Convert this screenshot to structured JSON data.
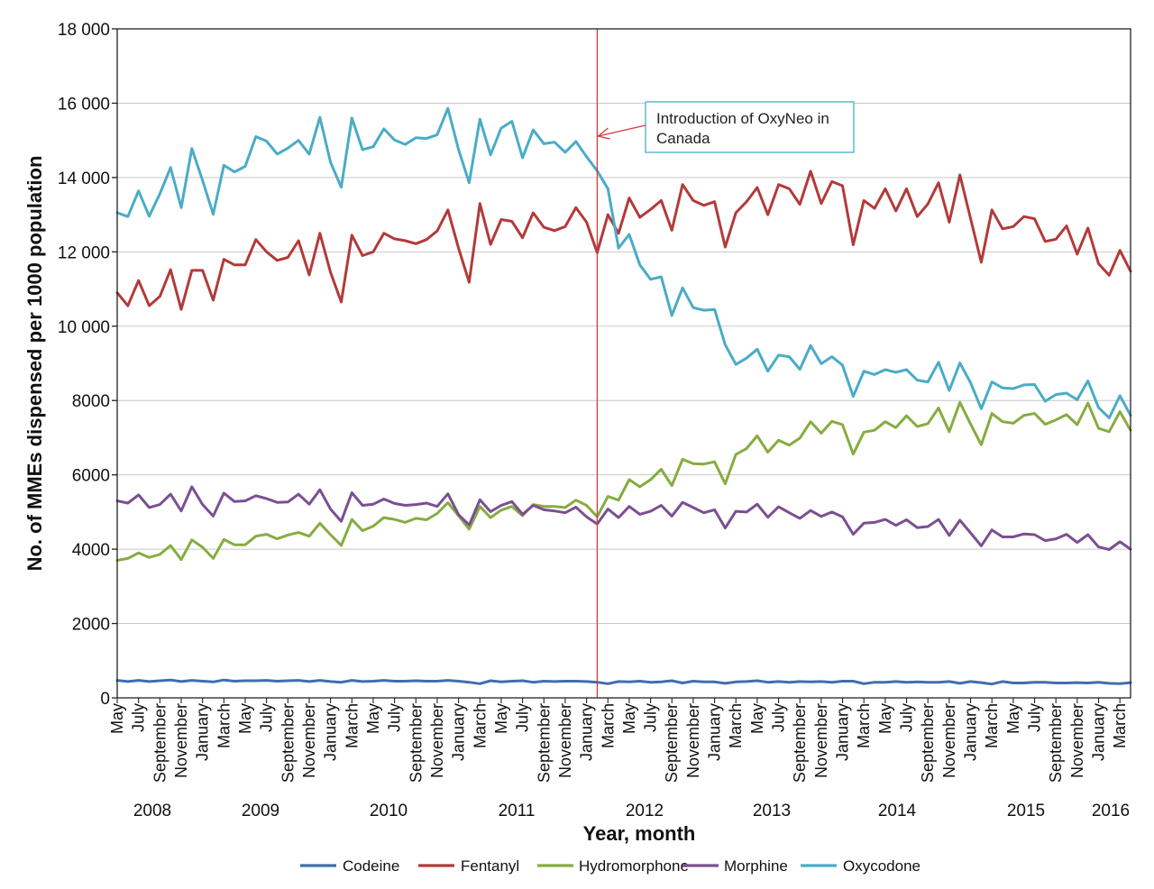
{
  "chart_data": {
    "type": "line",
    "xlabel": "Year, month",
    "ylabel": "No. of MMEs dispensed per 1000 population",
    "ylim": [
      0,
      18000
    ],
    "y_ticks": [
      "0",
      "2000",
      "4000",
      "6000",
      "8000",
      "10 000",
      "12 000",
      "14 000",
      "16 000",
      "18 000"
    ],
    "grid": "horizontal",
    "legend_position": "bottom",
    "x_month_labels": [
      "May",
      "July",
      "September",
      "November",
      "January",
      "March",
      "May",
      "July",
      "September",
      "November",
      "January",
      "March",
      "May",
      "July",
      "September",
      "November",
      "January",
      "March",
      "May",
      "July",
      "September",
      "November",
      "January",
      "March",
      "May",
      "July",
      "September",
      "November",
      "January",
      "March",
      "May",
      "July",
      "September",
      "November",
      "January",
      "March",
      "May",
      "July",
      "September",
      "November",
      "January",
      "March",
      "May",
      "July",
      "September",
      "November",
      "January",
      "March"
    ],
    "x_year_labels": [
      "2008",
      "2009",
      "2010",
      "2011",
      "2012",
      "2013",
      "2014",
      "2015",
      "2016"
    ],
    "period": "May 2008 - April 2016 (monthly)",
    "annotation": {
      "text_line1": "Introduction of OxyNeo in",
      "text_line2": "Canada",
      "date": "February 2012",
      "month_index": 45,
      "color": "#d23a3a"
    },
    "series": [
      {
        "name": "Codeine",
        "color": "#3f6fad",
        "values": [
          470,
          440,
          470,
          440,
          460,
          480,
          440,
          470,
          450,
          430,
          480,
          450,
          460,
          460,
          470,
          450,
          460,
          470,
          440,
          470,
          440,
          420,
          470,
          440,
          450,
          470,
          450,
          450,
          460,
          450,
          450,
          470,
          450,
          420,
          380,
          460,
          430,
          450,
          460,
          420,
          450,
          440,
          450,
          450,
          440,
          420,
          380,
          440,
          430,
          450,
          420,
          430,
          460,
          400,
          450,
          430,
          430,
          390,
          430,
          440,
          460,
          420,
          440,
          420,
          440,
          430,
          440,
          420,
          450,
          450,
          380,
          420,
          420,
          440,
          420,
          430,
          420,
          420,
          440,
          390,
          440,
          410,
          370,
          440,
          400,
          400,
          420,
          420,
          400,
          400,
          410,
          400,
          420,
          390,
          380,
          410
        ]
      },
      {
        "name": "Fentanyl",
        "color": "#b33a3a",
        "values": [
          10900,
          10550,
          11230,
          10550,
          10800,
          11520,
          10450,
          11500,
          11500,
          10700,
          11800,
          11650,
          11650,
          12330,
          12000,
          11770,
          11850,
          12300,
          11380,
          12500,
          11450,
          10650,
          12450,
          11900,
          12000,
          12500,
          12350,
          12300,
          12220,
          12330,
          12560,
          13130,
          12100,
          11180,
          13300,
          12200,
          12870,
          12820,
          12380,
          13050,
          12660,
          12570,
          12680,
          13190,
          12800,
          11980,
          13000,
          12500,
          13450,
          12930,
          13140,
          13380,
          12580,
          13810,
          13380,
          13250,
          13350,
          12130,
          13050,
          13350,
          13730,
          13000,
          13810,
          13700,
          13280,
          14170,
          13300,
          13890,
          13780,
          12190,
          13380,
          13170,
          13700,
          13100,
          13700,
          12950,
          13290,
          13860,
          12800,
          14070,
          12900,
          11720,
          13130,
          12620,
          12680,
          12950,
          12890,
          12280,
          12340,
          12700,
          11940,
          12640,
          11680,
          11370,
          12040,
          11480
        ]
      },
      {
        "name": "Hydromorphone",
        "color": "#86ac41",
        "values": [
          3700,
          3750,
          3900,
          3780,
          3860,
          4100,
          3720,
          4250,
          4050,
          3750,
          4260,
          4120,
          4120,
          4350,
          4400,
          4280,
          4380,
          4450,
          4350,
          4700,
          4390,
          4100,
          4800,
          4500,
          4620,
          4850,
          4800,
          4720,
          4830,
          4790,
          4960,
          5250,
          4900,
          4540,
          5150,
          4850,
          5050,
          5150,
          4900,
          5200,
          5150,
          5150,
          5120,
          5320,
          5180,
          4870,
          5420,
          5320,
          5870,
          5680,
          5870,
          6150,
          5710,
          6420,
          6300,
          6290,
          6350,
          5760,
          6550,
          6710,
          7050,
          6610,
          6930,
          6800,
          6990,
          7430,
          7120,
          7440,
          7350,
          6560,
          7150,
          7200,
          7430,
          7270,
          7590,
          7300,
          7380,
          7800,
          7160,
          7950,
          7370,
          6810,
          7650,
          7430,
          7390,
          7600,
          7650,
          7360,
          7480,
          7620,
          7350,
          7930,
          7250,
          7160,
          7700,
          7200
        ]
      },
      {
        "name": "Morphine",
        "color": "#7b4f91",
        "values": [
          5300,
          5240,
          5460,
          5120,
          5200,
          5480,
          5030,
          5680,
          5200,
          4890,
          5510,
          5280,
          5300,
          5440,
          5360,
          5260,
          5270,
          5480,
          5210,
          5600,
          5080,
          4750,
          5520,
          5180,
          5210,
          5350,
          5230,
          5180,
          5200,
          5240,
          5150,
          5490,
          4930,
          4650,
          5330,
          5010,
          5180,
          5280,
          4940,
          5180,
          5060,
          5030,
          4980,
          5130,
          4870,
          4680,
          5080,
          4850,
          5150,
          4940,
          5020,
          5180,
          4890,
          5260,
          5120,
          4980,
          5060,
          4570,
          5020,
          5000,
          5210,
          4860,
          5140,
          4980,
          4830,
          5040,
          4880,
          5000,
          4870,
          4400,
          4700,
          4720,
          4800,
          4640,
          4790,
          4580,
          4610,
          4800,
          4370,
          4780,
          4440,
          4090,
          4520,
          4330,
          4330,
          4410,
          4390,
          4230,
          4280,
          4400,
          4180,
          4390,
          4060,
          3990,
          4200,
          4000
        ]
      },
      {
        "name": "Oxycodone",
        "color": "#4aacc6",
        "values": [
          13050,
          12950,
          13640,
          12960,
          13560,
          14270,
          13190,
          14780,
          13920,
          13010,
          14330,
          14150,
          14300,
          15100,
          14980,
          14630,
          14790,
          15000,
          14630,
          15620,
          14410,
          13740,
          15600,
          14750,
          14830,
          15310,
          15010,
          14890,
          15070,
          15050,
          15150,
          15860,
          14750,
          13860,
          15570,
          14610,
          15330,
          15510,
          14530,
          15280,
          14910,
          14950,
          14680,
          14970,
          14560,
          14180,
          13700,
          12100,
          12470,
          11650,
          11260,
          11330,
          10290,
          11030,
          10500,
          10430,
          10450,
          9500,
          8970,
          9140,
          9380,
          8790,
          9220,
          9180,
          8840,
          9480,
          8990,
          9180,
          8950,
          8110,
          8790,
          8700,
          8830,
          8760,
          8830,
          8550,
          8500,
          9030,
          8270,
          9010,
          8480,
          7780,
          8500,
          8340,
          8320,
          8420,
          8430,
          7980,
          8160,
          8200,
          8020,
          8530,
          7810,
          7530,
          8130,
          7600
        ]
      }
    ]
  }
}
